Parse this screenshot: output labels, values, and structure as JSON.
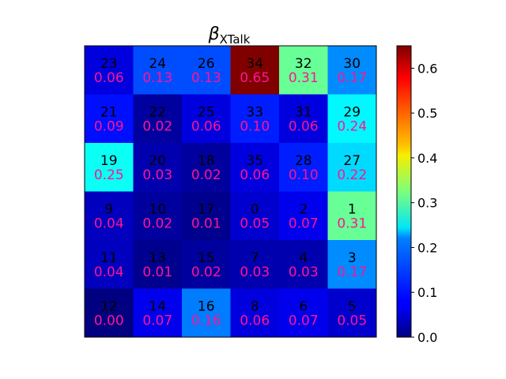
{
  "chart_data": {
    "type": "heatmap",
    "title": "β",
    "title_subscript": "XTalk",
    "colormap": "jet",
    "grid": false,
    "vmin": 0.0,
    "vmax": 0.65,
    "colorbar_ticks": [
      "0.0",
      "0.1",
      "0.2",
      "0.3",
      "0.4",
      "0.5",
      "0.6"
    ],
    "id_color": "#000000",
    "value_color": "#ff1493",
    "rows": 6,
    "cols": 6,
    "cells": [
      [
        {
          "id": "23",
          "value": "0.06"
        },
        {
          "id": "24",
          "value": "0.13"
        },
        {
          "id": "26",
          "value": "0.13"
        },
        {
          "id": "34",
          "value": "0.65"
        },
        {
          "id": "32",
          "value": "0.31"
        },
        {
          "id": "30",
          "value": "0.17"
        }
      ],
      [
        {
          "id": "21",
          "value": "0.09"
        },
        {
          "id": "22",
          "value": "0.02"
        },
        {
          "id": "25",
          "value": "0.06"
        },
        {
          "id": "33",
          "value": "0.10"
        },
        {
          "id": "31",
          "value": "0.06"
        },
        {
          "id": "29",
          "value": "0.24"
        }
      ],
      [
        {
          "id": "19",
          "value": "0.25"
        },
        {
          "id": "20",
          "value": "0.03"
        },
        {
          "id": "18",
          "value": "0.02"
        },
        {
          "id": "35",
          "value": "0.06"
        },
        {
          "id": "28",
          "value": "0.10"
        },
        {
          "id": "27",
          "value": "0.22"
        }
      ],
      [
        {
          "id": "9",
          "value": "0.04"
        },
        {
          "id": "10",
          "value": "0.02"
        },
        {
          "id": "17",
          "value": "0.01"
        },
        {
          "id": "0",
          "value": "0.05"
        },
        {
          "id": "2",
          "value": "0.07"
        },
        {
          "id": "1",
          "value": "0.31"
        }
      ],
      [
        {
          "id": "11",
          "value": "0.04"
        },
        {
          "id": "13",
          "value": "0.01"
        },
        {
          "id": "15",
          "value": "0.02"
        },
        {
          "id": "7",
          "value": "0.03"
        },
        {
          "id": "4",
          "value": "0.03"
        },
        {
          "id": "3",
          "value": "0.17"
        }
      ],
      [
        {
          "id": "12",
          "value": "0.00"
        },
        {
          "id": "14",
          "value": "0.07"
        },
        {
          "id": "16",
          "value": "0.16"
        },
        {
          "id": "8",
          "value": "0.06"
        },
        {
          "id": "6",
          "value": "0.07"
        },
        {
          "id": "5",
          "value": "0.05"
        }
      ]
    ]
  }
}
